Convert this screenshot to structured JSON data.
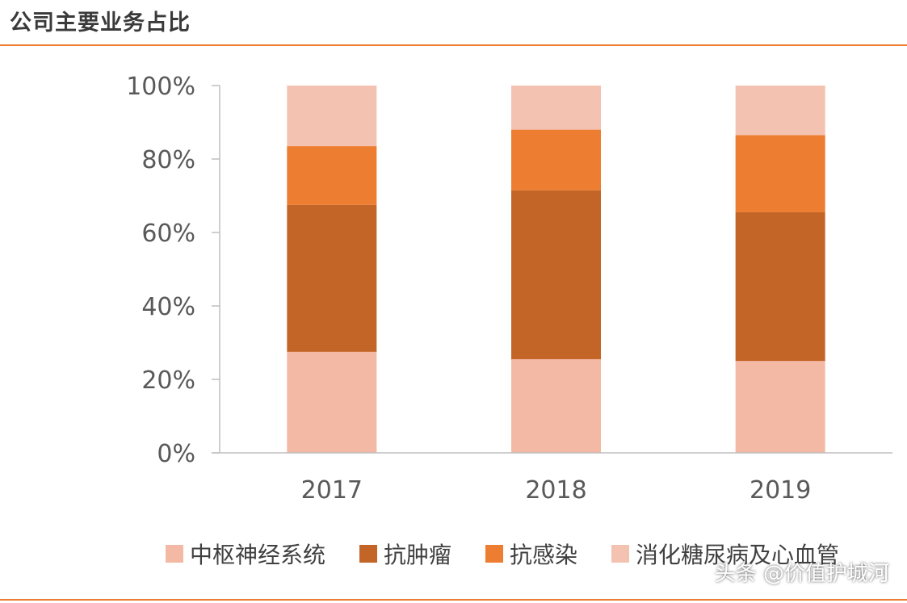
{
  "header": {
    "title": "公司主要业务占比"
  },
  "watermark": "头条 @价值护城河",
  "chart_data": {
    "type": "bar",
    "stacked": true,
    "categories": [
      "2017",
      "2018",
      "2019"
    ],
    "ylim": [
      0,
      100
    ],
    "yticks": [
      "0%",
      "20%",
      "40%",
      "60%",
      "80%",
      "100%"
    ],
    "legend_position": "bottom",
    "series": [
      {
        "name": "中枢神经系统",
        "values": [
          27.5,
          25.5,
          25
        ],
        "color": "#f4b9a5"
      },
      {
        "name": "抗肿瘤",
        "values": [
          40,
          46,
          40.5
        ],
        "color": "#c46528"
      },
      {
        "name": "抗感染",
        "values": [
          16,
          16.5,
          21
        ],
        "color": "#ed7d31"
      },
      {
        "name": "消化糖尿病及心血管",
        "values": [
          16.5,
          12,
          13.5
        ],
        "color": "#f4c2b1"
      }
    ]
  }
}
